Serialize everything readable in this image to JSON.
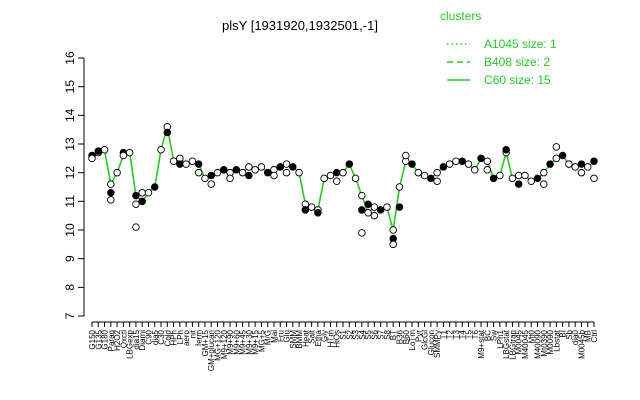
{
  "chart_data": {
    "type": "line",
    "title": "plsY [1931920,1932501,-1]",
    "xlabel": "",
    "ylabel": "",
    "ylim": [
      7,
      16
    ],
    "yticks": [
      7,
      8,
      9,
      10,
      11,
      12,
      13,
      14,
      15,
      16
    ],
    "legend": {
      "title": "clusters",
      "placement": "top-right",
      "entries": [
        {
          "label": "A1045 size: 1",
          "style": "dotted"
        },
        {
          "label": "B408 size: 2",
          "style": "dashed"
        },
        {
          "label": "C60 size: 15",
          "style": "solid"
        }
      ]
    },
    "line_color": "#22cc22",
    "tick_labels": [
      "G150",
      "G135",
      "G180",
      "Paraq",
      "H2O2",
      "Oxctl",
      "LBGexp",
      "dia15",
      "Diami",
      "C90",
      "dia5",
      "C30",
      "Cold",
      "HPh",
      "LPh",
      "aero",
      "nit",
      "ferm",
      "GM+15",
      "GM+glucan",
      "MG+120",
      "M9+120",
      "M9+90",
      "M9+60",
      "M9+45",
      "M9+30",
      "M9+15",
      "MG+5",
      "M/G",
      "Mal",
      "Fru",
      "Glu",
      "SMM",
      "BMM",
      "Heat",
      "Salt",
      "Etha",
      "Gly",
      "HTm",
      "HiOs",
      "S1",
      "S2",
      "S3",
      "S4",
      "S5",
      "S6",
      "S7",
      "S8",
      "BT",
      "B36",
      "B60",
      "LoTm",
      "Pyr",
      "GlcGl",
      "Glucon",
      "SMMPy",
      "T1",
      "T2",
      "T3",
      "T4",
      "T5",
      "T6",
      "M9+stat",
      "BC",
      "Sw",
      "LPh1",
      "LBGstat",
      "LBGtran",
      "M0045",
      "M40045",
      "Mt0",
      "M40090",
      "Mt0390",
      "M0090",
      "Lbstat",
      "BI",
      "Sb",
      "dia0",
      "M0045b",
      "MB",
      "Ctrl"
    ],
    "x": [
      0,
      1,
      2,
      3,
      4,
      5,
      6,
      7,
      8,
      9,
      10,
      11,
      12,
      13,
      14,
      15,
      16,
      17,
      18,
      19,
      20,
      21,
      22,
      23,
      24,
      25,
      26,
      27,
      28,
      29,
      30,
      31,
      32,
      33,
      34,
      35,
      36,
      37,
      38,
      39,
      40,
      41,
      42,
      43,
      44,
      45,
      46,
      47,
      48,
      49,
      50,
      51,
      52,
      53,
      54,
      55,
      56,
      57,
      58,
      59,
      60,
      61,
      62,
      63,
      64,
      65,
      66,
      67,
      68,
      69,
      70,
      71,
      72,
      73,
      74,
      75,
      76,
      77,
      78,
      79,
      80
    ],
    "series": [
      {
        "values": [
          12.6,
          12.7,
          12.8,
          11.6,
          12.0,
          12.6,
          12.7,
          11.2,
          11.0,
          11.3,
          11.5,
          12.8,
          13.6,
          12.4,
          12.5,
          12.3,
          12.4,
          12.3,
          11.8,
          11.9,
          12.0,
          12.1,
          12.0,
          12.1,
          12.0,
          12.2,
          12.1,
          12.2,
          12.0,
          12.1,
          12.2,
          12.3,
          12.2,
          12.0,
          10.9,
          10.8,
          10.7,
          11.8,
          11.9,
          12.0,
          12.0,
          12.3,
          11.8,
          11.2,
          10.6,
          10.8,
          10.7,
          10.8,
          10.0,
          11.5,
          12.4,
          12.3,
          12.0,
          11.9,
          11.8,
          12.0,
          12.2,
          12.3,
          12.4,
          12.4,
          12.3,
          12.1,
          12.5,
          12.4,
          11.8,
          11.9,
          12.7,
          11.8,
          11.9,
          11.9,
          11.7,
          11.8,
          12.0,
          12.3,
          12.5,
          12.6,
          12.3,
          12.2,
          12.3,
          12.2,
          12.4
        ]
      }
    ],
    "points": [
      {
        "x": 0,
        "y": 12.6
      },
      {
        "x": 0,
        "y": 12.5
      },
      {
        "x": 1,
        "y": 12.7
      },
      {
        "x": 1,
        "y": 12.75
      },
      {
        "x": 2,
        "y": 12.8
      },
      {
        "x": 3,
        "y": 11.6
      },
      {
        "x": 3,
        "y": 11.3
      },
      {
        "x": 3,
        "y": 11.05
      },
      {
        "x": 4,
        "y": 12.0
      },
      {
        "x": 5,
        "y": 12.7
      },
      {
        "x": 5,
        "y": 12.6
      },
      {
        "x": 6,
        "y": 12.7
      },
      {
        "x": 7,
        "y": 11.2
      },
      {
        "x": 7,
        "y": 10.9
      },
      {
        "x": 7,
        "y": 10.1
      },
      {
        "x": 8,
        "y": 11.0
      },
      {
        "x": 8,
        "y": 11.3
      },
      {
        "x": 9,
        "y": 11.3
      },
      {
        "x": 10,
        "y": 11.5
      },
      {
        "x": 11,
        "y": 12.8
      },
      {
        "x": 12,
        "y": 13.6
      },
      {
        "x": 12,
        "y": 13.4
      },
      {
        "x": 13,
        "y": 12.4
      },
      {
        "x": 14,
        "y": 12.5
      },
      {
        "x": 14,
        "y": 12.3
      },
      {
        "x": 15,
        "y": 12.3
      },
      {
        "x": 16,
        "y": 12.4
      },
      {
        "x": 17,
        "y": 12.3
      },
      {
        "x": 17,
        "y": 12.0
      },
      {
        "x": 18,
        "y": 11.8
      },
      {
        "x": 19,
        "y": 11.9
      },
      {
        "x": 19,
        "y": 11.6
      },
      {
        "x": 20,
        "y": 12.0
      },
      {
        "x": 21,
        "y": 12.1
      },
      {
        "x": 22,
        "y": 12.0
      },
      {
        "x": 22,
        "y": 11.8
      },
      {
        "x": 23,
        "y": 12.1
      },
      {
        "x": 24,
        "y": 12.0
      },
      {
        "x": 25,
        "y": 12.2
      },
      {
        "x": 25,
        "y": 11.9
      },
      {
        "x": 26,
        "y": 12.1
      },
      {
        "x": 27,
        "y": 12.2
      },
      {
        "x": 28,
        "y": 12.0
      },
      {
        "x": 29,
        "y": 12.1
      },
      {
        "x": 29,
        "y": 11.9
      },
      {
        "x": 30,
        "y": 12.2
      },
      {
        "x": 31,
        "y": 12.3
      },
      {
        "x": 31,
        "y": 12.0
      },
      {
        "x": 32,
        "y": 12.2
      },
      {
        "x": 33,
        "y": 12.0
      },
      {
        "x": 34,
        "y": 10.9
      },
      {
        "x": 34,
        "y": 10.7
      },
      {
        "x": 35,
        "y": 10.8
      },
      {
        "x": 36,
        "y": 10.7
      },
      {
        "x": 36,
        "y": 10.6
      },
      {
        "x": 37,
        "y": 11.8
      },
      {
        "x": 38,
        "y": 11.9
      },
      {
        "x": 39,
        "y": 12.0
      },
      {
        "x": 39,
        "y": 11.7
      },
      {
        "x": 40,
        "y": 12.0
      },
      {
        "x": 41,
        "y": 12.3
      },
      {
        "x": 42,
        "y": 11.8
      },
      {
        "x": 43,
        "y": 11.2
      },
      {
        "x": 43,
        "y": 10.7
      },
      {
        "x": 43,
        "y": 9.9
      },
      {
        "x": 44,
        "y": 10.6
      },
      {
        "x": 44,
        "y": 10.9
      },
      {
        "x": 45,
        "y": 10.8
      },
      {
        "x": 45,
        "y": 10.5
      },
      {
        "x": 46,
        "y": 10.7
      },
      {
        "x": 47,
        "y": 10.8
      },
      {
        "x": 48,
        "y": 10.0
      },
      {
        "x": 48,
        "y": 9.7
      },
      {
        "x": 48,
        "y": 9.5
      },
      {
        "x": 49,
        "y": 11.5
      },
      {
        "x": 49,
        "y": 10.8
      },
      {
        "x": 50,
        "y": 12.4
      },
      {
        "x": 50,
        "y": 12.6
      },
      {
        "x": 51,
        "y": 12.3
      },
      {
        "x": 52,
        "y": 12.0
      },
      {
        "x": 53,
        "y": 11.9
      },
      {
        "x": 54,
        "y": 11.8
      },
      {
        "x": 55,
        "y": 12.0
      },
      {
        "x": 55,
        "y": 11.7
      },
      {
        "x": 56,
        "y": 12.2
      },
      {
        "x": 57,
        "y": 12.3
      },
      {
        "x": 58,
        "y": 12.4
      },
      {
        "x": 59,
        "y": 12.4
      },
      {
        "x": 60,
        "y": 12.3
      },
      {
        "x": 61,
        "y": 12.1
      },
      {
        "x": 62,
        "y": 12.5
      },
      {
        "x": 63,
        "y": 12.4
      },
      {
        "x": 63,
        "y": 12.1
      },
      {
        "x": 64,
        "y": 11.8
      },
      {
        "x": 65,
        "y": 11.9
      },
      {
        "x": 66,
        "y": 12.7
      },
      {
        "x": 66,
        "y": 12.8
      },
      {
        "x": 67,
        "y": 11.8
      },
      {
        "x": 68,
        "y": 11.9
      },
      {
        "x": 68,
        "y": 11.6
      },
      {
        "x": 69,
        "y": 11.9
      },
      {
        "x": 70,
        "y": 11.7
      },
      {
        "x": 71,
        "y": 11.8
      },
      {
        "x": 72,
        "y": 12.0
      },
      {
        "x": 72,
        "y": 11.6
      },
      {
        "x": 73,
        "y": 12.3
      },
      {
        "x": 74,
        "y": 12.5
      },
      {
        "x": 74,
        "y": 12.9
      },
      {
        "x": 75,
        "y": 12.6
      },
      {
        "x": 76,
        "y": 12.3
      },
      {
        "x": 77,
        "y": 12.2
      },
      {
        "x": 78,
        "y": 12.3
      },
      {
        "x": 78,
        "y": 12.0
      },
      {
        "x": 79,
        "y": 12.2
      },
      {
        "x": 80,
        "y": 12.4
      },
      {
        "x": 80,
        "y": 11.8
      }
    ],
    "grid": false
  }
}
